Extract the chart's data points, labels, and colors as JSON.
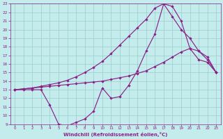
{
  "xlabel": "Windchill (Refroidissement éolien,°C)",
  "xlim": [
    -0.5,
    23.5
  ],
  "ylim": [
    9,
    23
  ],
  "xticks": [
    0,
    1,
    2,
    3,
    4,
    5,
    6,
    7,
    8,
    9,
    10,
    11,
    12,
    13,
    14,
    15,
    16,
    17,
    18,
    19,
    20,
    21,
    22,
    23
  ],
  "yticks": [
    9,
    10,
    11,
    12,
    13,
    14,
    15,
    16,
    17,
    18,
    19,
    20,
    21,
    22,
    23
  ],
  "bg_color": "#c5eced",
  "line_color": "#882288",
  "grid_color": "#99cccc",
  "line1_x": [
    0,
    1,
    2,
    3,
    4,
    5,
    6,
    7,
    8,
    9,
    10,
    11,
    12,
    13,
    14,
    15,
    16,
    17,
    18,
    19,
    20,
    21,
    22,
    23
  ],
  "line1_y": [
    13,
    13,
    13,
    13,
    11.2,
    9.0,
    8.8,
    9.2,
    9.6,
    10.5,
    13.2,
    12.0,
    12.2,
    13.5,
    15.2,
    17.5,
    19.5,
    23.0,
    22.7,
    21.0,
    17.8,
    16.5,
    16.2,
    15.0
  ],
  "line2_x": [
    0,
    1,
    2,
    3,
    4,
    5,
    6,
    7,
    8,
    9,
    10,
    11,
    12,
    13,
    14,
    15,
    16,
    17,
    18,
    19,
    20,
    21,
    22,
    23
  ],
  "line2_y": [
    13.0,
    13.1,
    13.2,
    13.3,
    13.4,
    13.5,
    13.6,
    13.7,
    13.8,
    13.9,
    14.0,
    14.2,
    14.4,
    14.6,
    14.9,
    15.2,
    15.7,
    16.2,
    16.8,
    17.4,
    17.8,
    17.5,
    16.8,
    15.0
  ],
  "line3_x": [
    0,
    1,
    2,
    3,
    4,
    5,
    6,
    7,
    8,
    9,
    10,
    11,
    12,
    13,
    14,
    15,
    16,
    17,
    18,
    19,
    20,
    21,
    22,
    23
  ],
  "line3_y": [
    13.0,
    13.1,
    13.2,
    13.4,
    13.6,
    13.8,
    14.1,
    14.5,
    15.0,
    15.6,
    16.3,
    17.2,
    18.2,
    19.2,
    20.2,
    21.2,
    22.5,
    23.0,
    21.5,
    20.0,
    19.0,
    17.5,
    16.5,
    15.0
  ]
}
